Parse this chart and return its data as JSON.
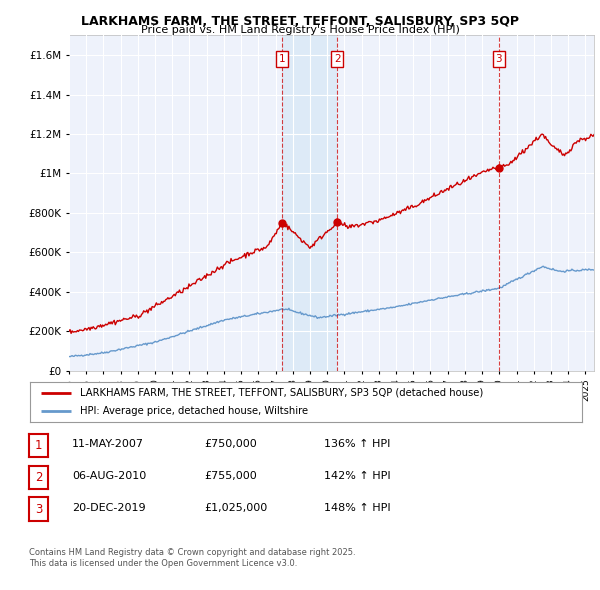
{
  "title": "LARKHAMS FARM, THE STREET, TEFFONT, SALISBURY, SP3 5QP",
  "subtitle": "Price paid vs. HM Land Registry's House Price Index (HPI)",
  "ylim": [
    0,
    1700000
  ],
  "yticks": [
    0,
    200000,
    400000,
    600000,
    800000,
    1000000,
    1200000,
    1400000,
    1600000
  ],
  "xlim_start": 1995.0,
  "xlim_end": 2025.5,
  "house_color": "#cc0000",
  "hpi_color": "#6699cc",
  "hpi_fill_color": "#dde8f5",
  "legend_house": "LARKHAMS FARM, THE STREET, TEFFONT, SALISBURY, SP3 5QP (detached house)",
  "legend_hpi": "HPI: Average price, detached house, Wiltshire",
  "sale1_date": 2007.36,
  "sale1_price": 750000,
  "sale1_label": "1",
  "sale2_date": 2010.59,
  "sale2_price": 755000,
  "sale2_label": "2",
  "sale3_date": 2019.97,
  "sale3_price": 1025000,
  "sale3_label": "3",
  "table_rows": [
    [
      "1",
      "11-MAY-2007",
      "£750,000",
      "136% ↑ HPI"
    ],
    [
      "2",
      "06-AUG-2010",
      "£755,000",
      "142% ↑ HPI"
    ],
    [
      "3",
      "20-DEC-2019",
      "£1,025,000",
      "148% ↑ HPI"
    ]
  ],
  "footnote1": "Contains HM Land Registry data © Crown copyright and database right 2025.",
  "footnote2": "This data is licensed under the Open Government Licence v3.0.",
  "background_color": "#eef2fb"
}
